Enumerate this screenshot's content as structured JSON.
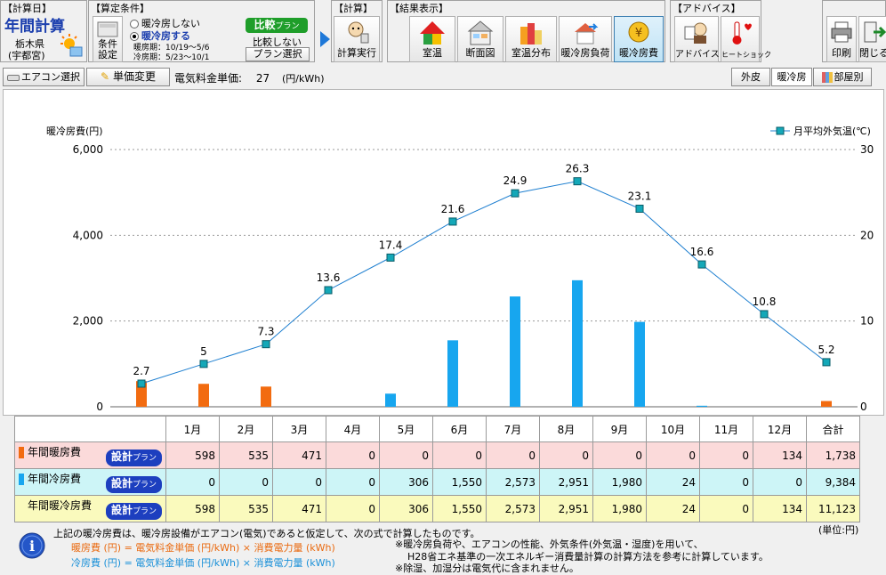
{
  "toolbar": {
    "calc_date_group": "【計算日】",
    "app_title": "年間計算",
    "location_line1": "栃木県",
    "location_line2": "(宇都宮)",
    "condition_group": "【算定条件】",
    "condition_button": "条件設定",
    "radio_no": "暖冷房しない",
    "radio_yes": "暖冷房する",
    "heating_period": "暖房期：10/19～5/6",
    "cooling_period": "冷房期：5/23～10/1",
    "compare_label": "比較",
    "compare_sub": "プラン",
    "no_compare": "比較しない",
    "plan_select": "プラン選択",
    "calc_group": "【計算】",
    "calc_run": "計算実行",
    "result_group": "【結果表示】",
    "results": [
      "室温",
      "断面図",
      "室温分布",
      "暖冷房負荷",
      "暖冷房費"
    ],
    "advice_group": "【アドバイス】",
    "advice": "アドバイス",
    "heatshock": "ヒートショック",
    "print": "印刷",
    "close": "閉じる"
  },
  "subbar": {
    "aircon_select": "エアコン選択",
    "price_change": "単価変更",
    "price_label": "電気料金単価:",
    "price_value": "27",
    "price_unit": "(円/kWh)",
    "tab_outer": "外皮",
    "tab_hvac": "暖冷房",
    "tab_room": "部屋別"
  },
  "chart_data": {
    "type": "bar+line",
    "categories": [
      "1月",
      "2月",
      "3月",
      "4月",
      "5月",
      "6月",
      "7月",
      "8月",
      "9月",
      "10月",
      "11月",
      "12月"
    ],
    "ylabel_left": "暖冷房費(円)",
    "ylim_left": [
      0,
      6000
    ],
    "yticks_left": [
      "0",
      "2,000",
      "4,000",
      "6,000"
    ],
    "ylim_right": [
      0,
      30
    ],
    "yticks_right": [
      "0",
      "10",
      "20",
      "30"
    ],
    "series": [
      {
        "name": "年間暖房費",
        "type": "bar",
        "color": "#f26b10",
        "values": [
          598,
          535,
          471,
          0,
          0,
          0,
          0,
          0,
          0,
          0,
          0,
          134
        ]
      },
      {
        "name": "年間冷房費",
        "type": "bar",
        "color": "#17a6ef",
        "values": [
          0,
          0,
          0,
          0,
          306,
          1550,
          2573,
          2951,
          1980,
          24,
          0,
          0
        ]
      },
      {
        "name": "月平均外気温(℃)",
        "type": "line",
        "color": "#1e7fd0",
        "values": [
          2.7,
          5.0,
          7.3,
          13.6,
          17.4,
          21.6,
          24.9,
          26.3,
          23.1,
          16.6,
          10.8,
          5.2
        ]
      }
    ],
    "legend": "top-right"
  },
  "table": {
    "total_header": "合計",
    "rows": [
      {
        "label": "年間暖房費",
        "plan": "設計",
        "plan_sub": "プラン",
        "color": "#f26b10",
        "values": [
          "598",
          "535",
          "471",
          "0",
          "0",
          "0",
          "0",
          "0",
          "0",
          "0",
          "0",
          "134"
        ],
        "total": "1,738"
      },
      {
        "label": "年間冷房費",
        "plan": "設計",
        "plan_sub": "プラン",
        "color": "#17a6ef",
        "values": [
          "0",
          "0",
          "0",
          "0",
          "306",
          "1,550",
          "2,573",
          "2,951",
          "1,980",
          "24",
          "0",
          "0"
        ],
        "total": "9,384"
      },
      {
        "label": "年間暖冷房費",
        "plan": "設計",
        "plan_sub": "プラン",
        "color": "",
        "values": [
          "598",
          "535",
          "471",
          "0",
          "306",
          "1,550",
          "2,573",
          "2,951",
          "1,980",
          "24",
          "0",
          "134"
        ],
        "total": "11,123"
      }
    ]
  },
  "notes": {
    "unit": "(単位:円)",
    "line1": "上記の暖冷房費は、暖冷房設備がエアコン(電気)であると仮定して、次の式で計算したものです。",
    "heating_formula": "暖房費 (円) = 電気料金単価 (円/kWh) × 消費電力量 (kWh)",
    "cooling_formula": "冷房費 (円) = 電気料金単価 (円/kWh) × 消費電力量 (kWh)",
    "right1": "※暖冷房負荷や、エアコンの性能、外気条件(外気温・湿度)を用いて、",
    "right2": "H28省エネ基準の一次エネルギー消費量計算の計算方法を参考に計算しています。",
    "right3": "※除湿、加湿分は電気代に含まれません。"
  }
}
